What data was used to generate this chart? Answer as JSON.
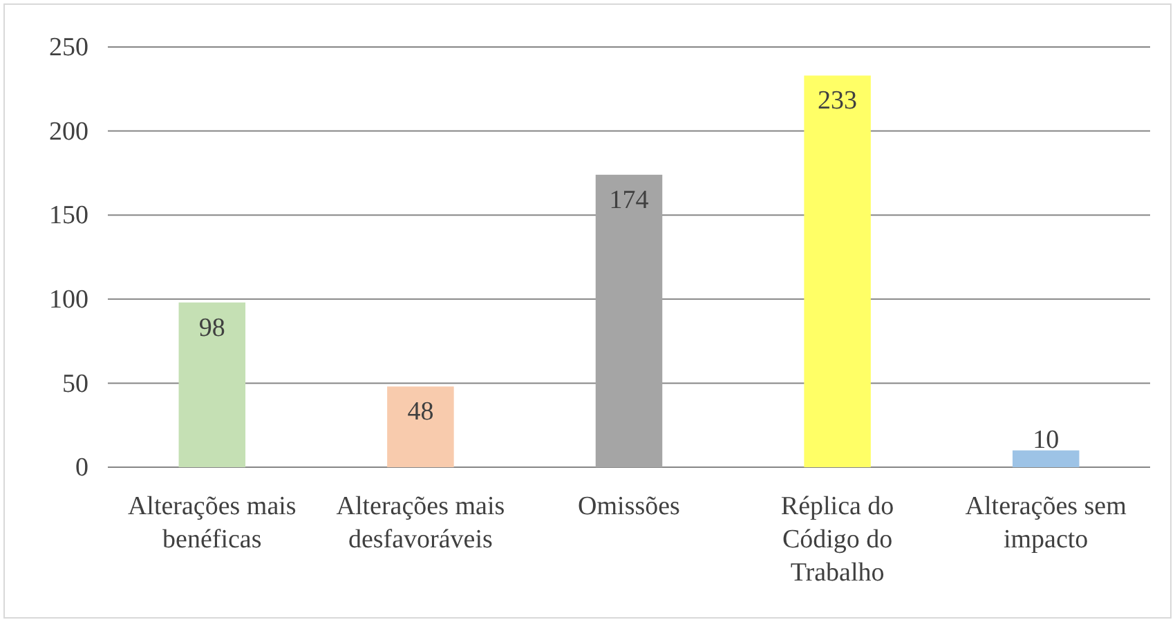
{
  "chart_data": {
    "type": "bar",
    "categories": [
      "Alterações mais benéficas",
      "Alterações mais desfavoráveis",
      "Omissões",
      "Réplica do Código do Trabalho",
      "Alterações sem impacto"
    ],
    "values": [
      98,
      48,
      174,
      233,
      10
    ],
    "colors": [
      "#c5e0b4",
      "#f8cbad",
      "#a5a5a5",
      "#ffff66",
      "#9dc3e6"
    ],
    "ylim": [
      0,
      250
    ],
    "yticks": [
      0,
      50,
      100,
      150,
      200,
      250
    ],
    "grid": "y",
    "data_labels": true
  }
}
